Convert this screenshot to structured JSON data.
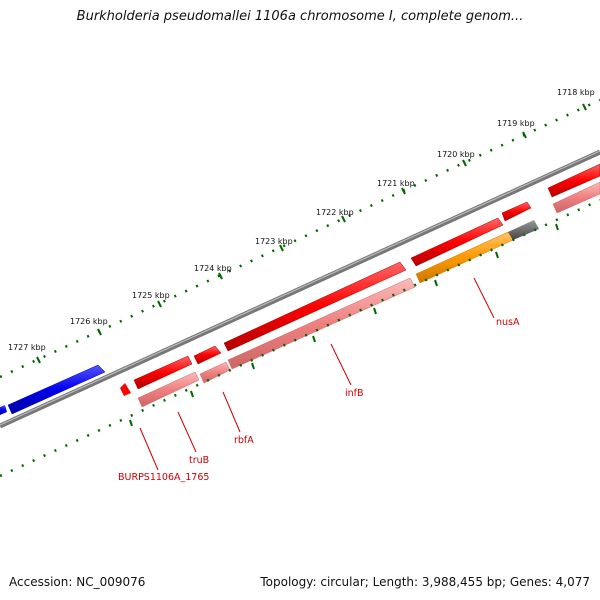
{
  "title": "Burkholderia pseudomallei 1106a chromosome I, complete genom...",
  "footer": {
    "accession": "Accession: NC_009076",
    "summary": "Topology: circular; Length: 3,988,455 bp; Genes: 4,077"
  },
  "ruler_labels": [
    "1718 kbp",
    "1719 kbp",
    "1720 kbp",
    "1721 kbp",
    "1722 kbp",
    "1723 kbp",
    "1724 kbp",
    "1725 kbp",
    "1726 kbp",
    "1727 kbp"
  ],
  "gene_labels": {
    "nusA": "nusA",
    "infB": "infB",
    "rbfA": "rbfA",
    "truB": "truB",
    "burps": "BURPS1106A_1765"
  },
  "colors": {
    "cds_forward": "#ff0000",
    "cds_light": "#f08080",
    "blue_gene": "#0000ee",
    "orange_gene": "#ff9900",
    "gray_gene": "#666666",
    "backbone": "#888888",
    "tick": "#006600",
    "label": "#cc0000"
  }
}
